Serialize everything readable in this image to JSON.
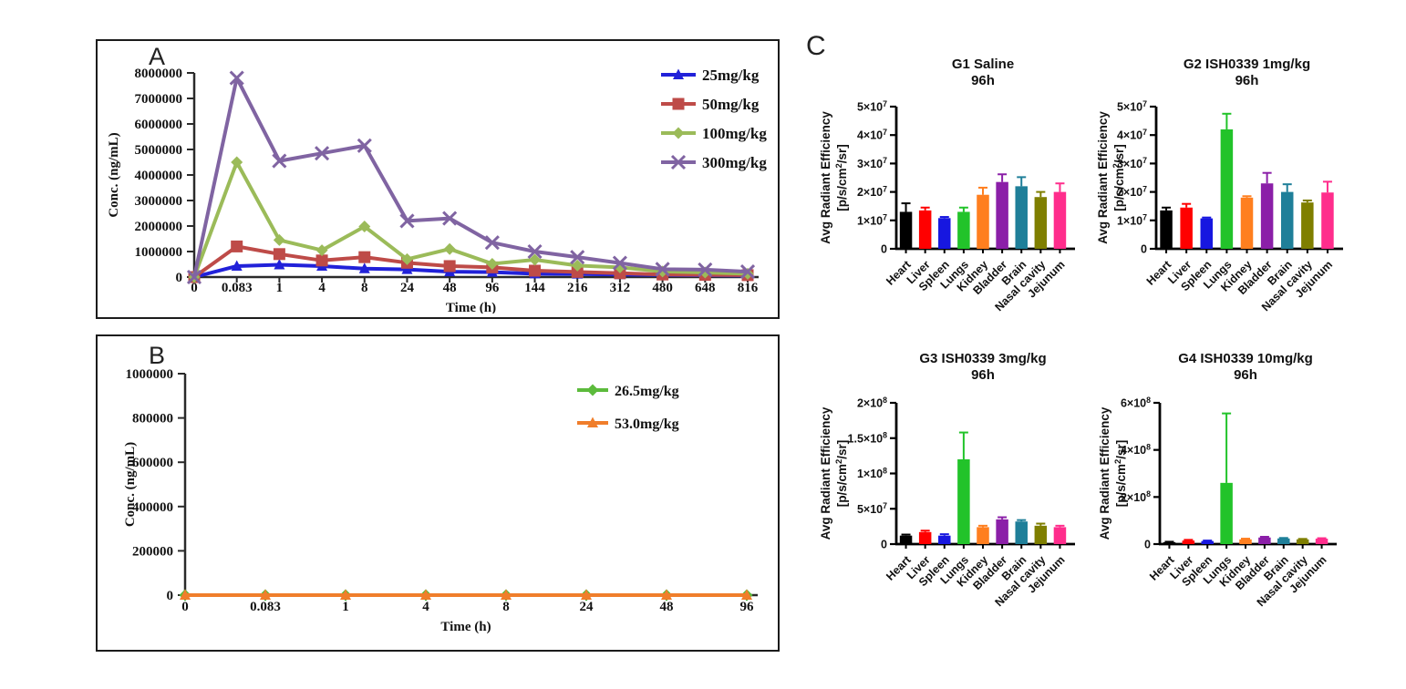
{
  "panels": {
    "a": {
      "label": "A"
    },
    "b": {
      "label": "B"
    },
    "c": {
      "label": "C"
    }
  },
  "chart_data": [
    {
      "id": "A",
      "type": "line",
      "title": "",
      "xlabel": "Time (h)",
      "ylabel": "Conc. (ng/mL)",
      "categories": [
        "0",
        "0.083",
        "1",
        "4",
        "8",
        "24",
        "48",
        "96",
        "144",
        "216",
        "312",
        "480",
        "648",
        "816"
      ],
      "ylim": [
        0,
        8000000
      ],
      "yticks": [
        {
          "v": 0,
          "label": "0"
        },
        {
          "v": 1000000,
          "label": "1000000"
        },
        {
          "v": 2000000,
          "label": "2000000"
        },
        {
          "v": 3000000,
          "label": "3000000"
        },
        {
          "v": 4000000,
          "label": "4000000"
        },
        {
          "v": 5000000,
          "label": "5000000"
        },
        {
          "v": 6000000,
          "label": "6000000"
        },
        {
          "v": 7000000,
          "label": "7000000"
        },
        {
          "v": 8000000,
          "label": "8000000"
        }
      ],
      "legend_position": "top-right",
      "grid": false,
      "series": [
        {
          "name": "25mg/kg",
          "color": "#2121D9",
          "marker": "triangle",
          "values": [
            0,
            430000,
            480000,
            430000,
            330000,
            300000,
            210000,
            190000,
            130000,
            120000,
            100000,
            80000,
            70000,
            60000
          ]
        },
        {
          "name": "50mg/kg",
          "color": "#BE4B48",
          "marker": "square",
          "values": [
            0,
            1200000,
            900000,
            650000,
            780000,
            560000,
            430000,
            380000,
            250000,
            200000,
            150000,
            100000,
            85000,
            75000
          ]
        },
        {
          "name": "100mg/kg",
          "color": "#9BBB59",
          "marker": "diamond",
          "values": [
            0,
            4500000,
            1450000,
            1050000,
            1980000,
            700000,
            1100000,
            520000,
            680000,
            450000,
            380000,
            220000,
            180000,
            130000
          ]
        },
        {
          "name": "300mg/kg",
          "color": "#8064A2",
          "marker": "x",
          "values": [
            0,
            7800000,
            4550000,
            4850000,
            5150000,
            2200000,
            2300000,
            1350000,
            1000000,
            780000,
            550000,
            310000,
            290000,
            210000
          ]
        }
      ]
    },
    {
      "id": "B",
      "type": "line",
      "title": "",
      "xlabel": "Time (h)",
      "ylabel": "Conc. (ng/mL)",
      "categories": [
        "0",
        "0.083",
        "1",
        "4",
        "8",
        "24",
        "48",
        "96"
      ],
      "ylim": [
        0,
        1000000
      ],
      "yticks": [
        {
          "v": 0,
          "label": "0"
        },
        {
          "v": 200000,
          "label": "200000"
        },
        {
          "v": 400000,
          "label": "400000"
        },
        {
          "v": 600000,
          "label": "600000"
        },
        {
          "v": 800000,
          "label": "800000"
        },
        {
          "v": 1000000,
          "label": "1000000"
        }
      ],
      "legend_position": "top-right",
      "grid": false,
      "series": [
        {
          "name": "26.5mg/kg",
          "color": "#5CBB3C",
          "marker": "diamond",
          "values": [
            0,
            0,
            0,
            0,
            0,
            0,
            0,
            0
          ]
        },
        {
          "name": "53.0mg/kg",
          "color": "#F07E2B",
          "marker": "triangle",
          "values": [
            0,
            0,
            0,
            0,
            0,
            0,
            0,
            0
          ]
        }
      ]
    },
    {
      "id": "G1",
      "type": "bar",
      "title": "G1 Saline",
      "subtitle": "96h",
      "ylabel_line1": "Avg Radiant Efficiency",
      "ylabel_line2": "[p/s/cm^2/sr]",
      "categories": [
        "Heart",
        "Liver",
        "Spleen",
        "Lungs",
        "Kidney",
        "Bladder",
        "Brain",
        "Nasal cavity",
        "Jejunum"
      ],
      "colors": [
        "#000000",
        "#FF0000",
        "#1717E0",
        "#22C32A",
        "#FF7F1F",
        "#8B1FA8",
        "#1F7F99",
        "#7F7F00",
        "#FF2D8C"
      ],
      "values": [
        13000000,
        13500000,
        10800000,
        13000000,
        19000000,
        23500000,
        22000000,
        18200000,
        20000000
      ],
      "errors": [
        3000000,
        1000000,
        400000,
        1500000,
        2500000,
        2700000,
        3200000,
        1800000,
        3000000
      ],
      "ylim": [
        0,
        50000000
      ],
      "yticks": [
        {
          "v": 0,
          "label": "0"
        },
        {
          "v": 10000000,
          "label": "1×10^7"
        },
        {
          "v": 20000000,
          "label": "2×10^7"
        },
        {
          "v": 30000000,
          "label": "3×10^7"
        },
        {
          "v": 40000000,
          "label": "4×10^7"
        },
        {
          "v": 50000000,
          "label": "5×10^7"
        }
      ]
    },
    {
      "id": "G2",
      "type": "bar",
      "title": "G2 ISH0339 1mg/kg",
      "subtitle": "96h",
      "ylabel_line1": "Avg Radiant Efficiency",
      "ylabel_line2": "[p/s/cm^2/sr]",
      "categories": [
        "Heart",
        "Liver",
        "Spleen",
        "Lungs",
        "Kidney",
        "Bladder",
        "Brain",
        "Nasal cavity",
        "Jejunum"
      ],
      "colors": [
        "#000000",
        "#FF0000",
        "#1717E0",
        "#22C32A",
        "#FF7F1F",
        "#8B1FA8",
        "#1F7F99",
        "#7F7F00",
        "#FF2D8C"
      ],
      "values": [
        13500000,
        14500000,
        10700000,
        42000000,
        18000000,
        23000000,
        20000000,
        16300000,
        19800000
      ],
      "errors": [
        1000000,
        1300000,
        300000,
        5500000,
        500000,
        3700000,
        2700000,
        700000,
        3800000
      ],
      "ylim": [
        0,
        50000000
      ],
      "yticks": [
        {
          "v": 0,
          "label": "0"
        },
        {
          "v": 10000000,
          "label": "1×10^7"
        },
        {
          "v": 20000000,
          "label": "2×10^7"
        },
        {
          "v": 30000000,
          "label": "3×10^7"
        },
        {
          "v": 40000000,
          "label": "4×10^7"
        },
        {
          "v": 50000000,
          "label": "5×10^7"
        }
      ]
    },
    {
      "id": "G3",
      "type": "bar",
      "title": "G3 ISH0339 3mg/kg",
      "subtitle": "96h",
      "ylabel_line1": "Avg Radiant Efficiency",
      "ylabel_line2": "[p/s/cm^2/sr]",
      "categories": [
        "Heart",
        "Liver",
        "Spleen",
        "Lungs",
        "Kidney",
        "Bladder",
        "Brain",
        "Nasal cavity",
        "Jejunum"
      ],
      "colors": [
        "#000000",
        "#FF0000",
        "#1717E0",
        "#22C32A",
        "#FF7F1F",
        "#8B1FA8",
        "#1F7F99",
        "#7F7F00",
        "#FF2D8C"
      ],
      "values": [
        12000000,
        17000000,
        12000000,
        120000000,
        24000000,
        35000000,
        32000000,
        26000000,
        24000000
      ],
      "errors": [
        1500000,
        2000000,
        2000000,
        38000000,
        2000000,
        3000000,
        2000000,
        3000000,
        2000000
      ],
      "ylim": [
        0,
        200000000
      ],
      "yticks": [
        {
          "v": 0,
          "label": "0"
        },
        {
          "v": 50000000,
          "label": "5×10^7"
        },
        {
          "v": 100000000,
          "label": "1×10^8"
        },
        {
          "v": 150000000,
          "label": "1.5×10^8"
        },
        {
          "v": 200000000,
          "label": "2×10^8"
        }
      ]
    },
    {
      "id": "G4",
      "type": "bar",
      "title": "G4 ISH0339 10mg/kg",
      "subtitle": "96h",
      "ylabel_line1": "Avg Radiant Efficiency",
      "ylabel_line2": "[p/s/cm^2/sr]",
      "categories": [
        "Heart",
        "Liver",
        "Spleen",
        "Lungs",
        "Kidney",
        "Bladder",
        "Brain",
        "Nasal cavity",
        "Jejunum"
      ],
      "colors": [
        "#000000",
        "#FF0000",
        "#1717E0",
        "#22C32A",
        "#FF7F1F",
        "#8B1FA8",
        "#1F7F99",
        "#7F7F00",
        "#FF2D8C"
      ],
      "values": [
        8000000,
        15000000,
        13000000,
        260000000,
        20000000,
        28000000,
        24000000,
        20000000,
        23000000
      ],
      "errors": [
        2000000,
        3000000,
        2000000,
        295000000,
        3000000,
        3000000,
        2000000,
        2000000,
        2000000
      ],
      "ylim": [
        0,
        600000000
      ],
      "yticks": [
        {
          "v": 0,
          "label": "0"
        },
        {
          "v": 200000000,
          "label": "2×10^8"
        },
        {
          "v": 400000000,
          "label": "4×10^8"
        },
        {
          "v": 600000000,
          "label": "6×10^8"
        }
      ]
    }
  ]
}
